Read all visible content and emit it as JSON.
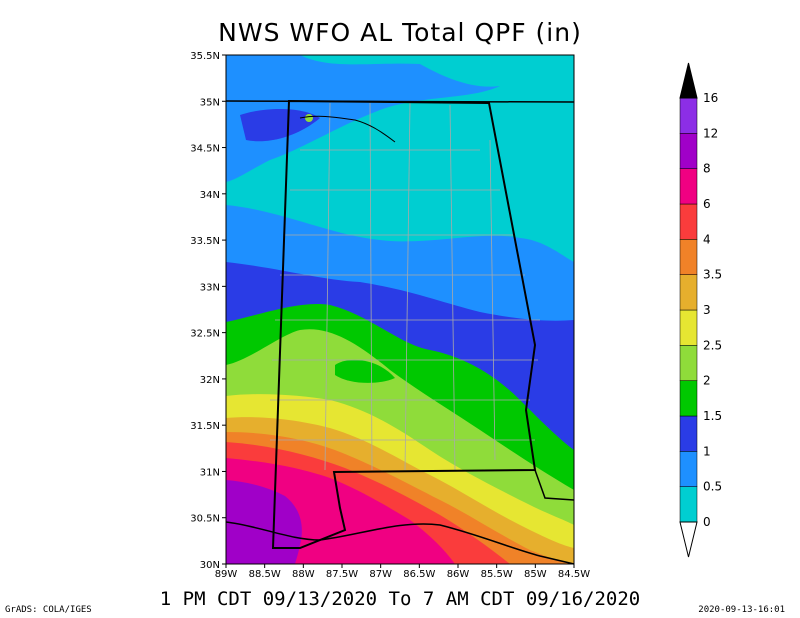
{
  "title": "NWS WFO AL Total QPF (in)",
  "subtitle": "1 PM CDT 09/13/2020 To 7 AM CDT 09/16/2020",
  "credit": "GrADS: COLA/IGES",
  "timestamp": "2020-09-13-16:01",
  "map": {
    "lon_ticks": [
      "89W",
      "88.5W",
      "88W",
      "87.5W",
      "87W",
      "86.5W",
      "86W",
      "85.5W",
      "85W",
      "84.5W"
    ],
    "lat_ticks": [
      "35.5N",
      "35N",
      "34.5N",
      "34N",
      "33.5N",
      "33N",
      "32.5N",
      "32N",
      "31.5N",
      "31N",
      "30.5N",
      "30N"
    ],
    "lon_range": [
      -89,
      -84.5
    ],
    "lat_range": [
      30,
      35.5
    ]
  },
  "colorbar": {
    "labels": [
      "0",
      "0.5",
      "1",
      "1.5",
      "2",
      "2.5",
      "3",
      "3.5",
      "4",
      "6",
      "8",
      "12",
      "16"
    ],
    "colors": [
      "#00ced1",
      "#1e90ff",
      "#2a3ce6",
      "#00c800",
      "#8fdc3a",
      "#e6e632",
      "#e6af2d",
      "#f08228",
      "#fa3c3c",
      "#f00082",
      "#a000c8",
      "#8c2ee6"
    ]
  }
}
